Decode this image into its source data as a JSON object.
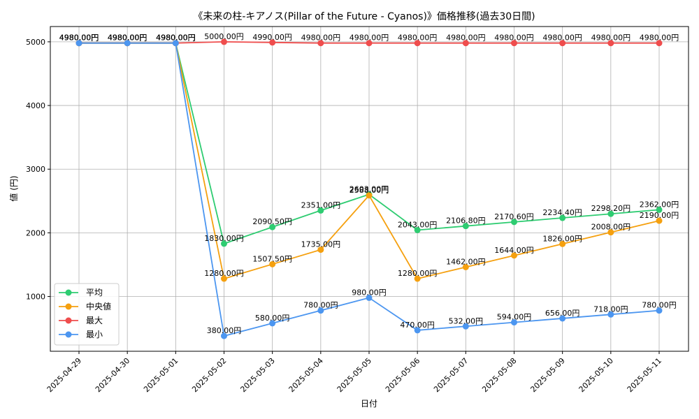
{
  "chart_data": {
    "type": "line",
    "title": "《未来の柱-キアノス(Pillar of the Future - Cyanos)》価格推移(過去30日間)",
    "xlabel": "日付",
    "ylabel": "値 (円)",
    "categories": [
      "2025-04-29",
      "2025-04-30",
      "2025-05-01",
      "2025-05-02",
      "2025-05-03",
      "2025-05-04",
      "2025-05-05",
      "2025-05-06",
      "2025-05-07",
      "2025-05-08",
      "2025-05-09",
      "2025-05-10",
      "2025-05-11"
    ],
    "ylim": [
      140,
      5240
    ],
    "yticks": [
      1000,
      2000,
      3000,
      4000,
      5000
    ],
    "grid": true,
    "legend_position": "lower-left",
    "series": [
      {
        "name": "平均",
        "color": "#2ecc71",
        "values": [
          4980,
          4980,
          4980,
          1830,
          2090.5,
          2351,
          2603,
          2043,
          2106.8,
          2170.6,
          2234.4,
          2298.2,
          2362
        ],
        "labels": [
          "4980.00円",
          "4980.00円",
          "4980.00円",
          "1830.00円",
          "2090.50円",
          "2351.00円",
          "2603.00円",
          "2043.00円",
          "2106.80円",
          "2170.60円",
          "2234.40円",
          "2298.20円",
          "2362.00円"
        ]
      },
      {
        "name": "中央値",
        "color": "#f5a00f",
        "values": [
          4980,
          4980,
          4980,
          1280,
          1507.5,
          1735,
          2588,
          1280,
          1462,
          1644,
          1826,
          2008,
          2190
        ],
        "labels": [
          "4980.00円",
          "4980.00円",
          "4980.00円",
          "1280.00円",
          "1507.50円",
          "1735.00円",
          "2588.00円",
          "1280.00円",
          "1462.00円",
          "1644.00円",
          "1826.00円",
          "2008.00円",
          "2190.00円"
        ]
      },
      {
        "name": "最大",
        "color": "#ef4d4d",
        "values": [
          4980,
          4980,
          4980,
          5000,
          4990,
          4980,
          4980,
          4980,
          4980,
          4980,
          4980,
          4980,
          4980
        ],
        "labels": [
          "4980.00円",
          "4980.00円",
          "4980.00円",
          "5000.00円",
          "4990.00円",
          "4980.00円",
          "4980.00円",
          "4980.00円",
          "4980.00円",
          "4980.00円",
          "4980.00円",
          "4980.00円",
          "4980.00円"
        ]
      },
      {
        "name": "最小",
        "color": "#4c96f0",
        "values": [
          4980,
          4980,
          4980,
          380,
          580,
          780,
          980,
          470,
          532,
          594,
          656,
          718,
          780
        ],
        "labels": [
          "4980.00円",
          "4980.00円",
          "4980.00円",
          "380.00円",
          "580.00円",
          "780.00円",
          "980.00円",
          "470.00円",
          "532.00円",
          "594.00円",
          "656.00円",
          "718.00円",
          "780.00円"
        ]
      }
    ]
  }
}
